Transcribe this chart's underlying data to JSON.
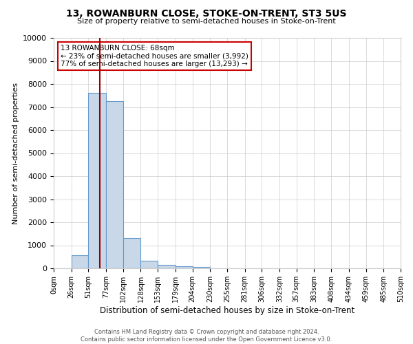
{
  "title": "13, ROWANBURN CLOSE, STOKE-ON-TRENT, ST3 5US",
  "subtitle": "Size of property relative to semi-detached houses in Stoke-on-Trent",
  "xlabel": "Distribution of semi-detached houses by size in Stoke-on-Trent",
  "ylabel": "Number of semi-detached properties",
  "property_label": "13 ROWANBURN CLOSE: 68sqm",
  "pct_smaller": 23,
  "pct_larger": 77,
  "count_smaller": 3992,
  "count_larger": 13293,
  "bin_edges": [
    0,
    26,
    51,
    77,
    102,
    128,
    153,
    179,
    204,
    230,
    255,
    281,
    306,
    332,
    357,
    383,
    408,
    434,
    459,
    485,
    510
  ],
  "bin_counts": [
    0,
    570,
    7600,
    7250,
    1320,
    340,
    160,
    95,
    70,
    0,
    0,
    0,
    0,
    0,
    0,
    0,
    0,
    0,
    0,
    0
  ],
  "bar_facecolor": "#c8d8e8",
  "bar_edgecolor": "#6699cc",
  "vline_color": "#990000",
  "vline_x": 68,
  "annotation_box_edgecolor": "#cc0000",
  "annotation_box_facecolor": "#ffffff",
  "grid_color": "#cccccc",
  "background_color": "#ffffff",
  "footer_line1": "Contains HM Land Registry data © Crown copyright and database right 2024.",
  "footer_line2": "Contains public sector information licensed under the Open Government Licence v3.0.",
  "ylim": [
    0,
    10000
  ],
  "yticks": [
    0,
    1000,
    2000,
    3000,
    4000,
    5000,
    6000,
    7000,
    8000,
    9000,
    10000
  ],
  "xtick_labels": [
    "0sqm",
    "26sqm",
    "51sqm",
    "77sqm",
    "102sqm",
    "128sqm",
    "153sqm",
    "179sqm",
    "204sqm",
    "230sqm",
    "255sqm",
    "281sqm",
    "306sqm",
    "332sqm",
    "357sqm",
    "383sqm",
    "408sqm",
    "434sqm",
    "459sqm",
    "485sqm",
    "510sqm"
  ]
}
